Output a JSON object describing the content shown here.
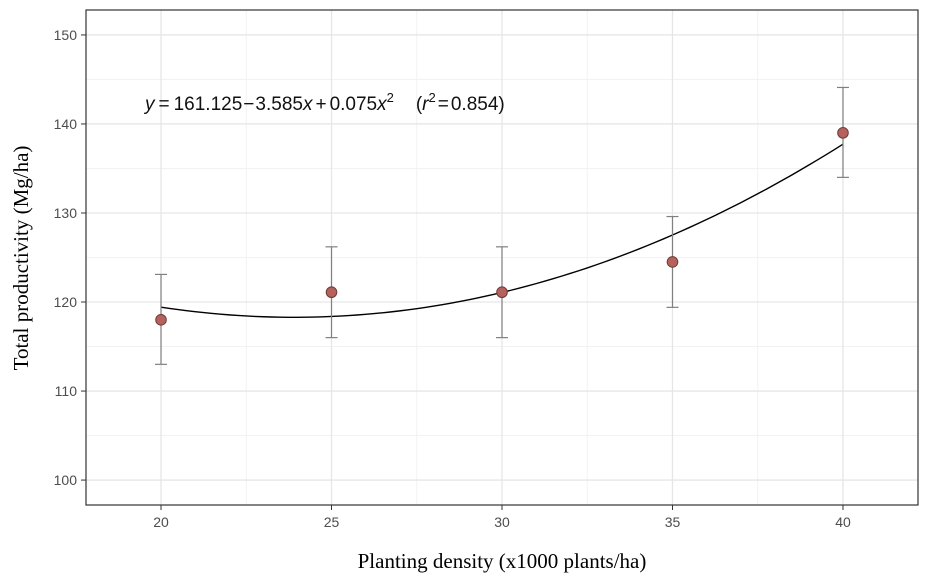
{
  "chart_data": {
    "type": "scatter",
    "title": "",
    "xlabel": "Planting density (x1000 plants/ha)",
    "ylabel": "Total productivity (Mg/ha)",
    "xlim": [
      17.8,
      42.2
    ],
    "ylim": [
      97.2,
      152.8
    ],
    "x_ticks": [
      20,
      25,
      30,
      35,
      40
    ],
    "y_ticks": [
      100,
      110,
      120,
      130,
      140,
      150
    ],
    "grid": true,
    "points": [
      {
        "x": 20,
        "y": 118.0,
        "err_low": 113.0,
        "err_high": 123.1
      },
      {
        "x": 25,
        "y": 121.1,
        "err_low": 116.0,
        "err_high": 126.2
      },
      {
        "x": 30,
        "y": 121.1,
        "err_low": 116.0,
        "err_high": 126.2
      },
      {
        "x": 35,
        "y": 124.5,
        "err_low": 119.4,
        "err_high": 129.6
      },
      {
        "x": 40,
        "y": 139.0,
        "err_low": 134.0,
        "err_high": 144.1
      }
    ],
    "fit": {
      "type": "quadratic",
      "a": 161.125,
      "b": -3.585,
      "c": 0.075,
      "r2": 0.854,
      "x_range": [
        20,
        40
      ]
    },
    "equation": {
      "y_var": "y",
      "x_var": "x",
      "r_var": "r",
      "equals": "=",
      "intercept": "161.125",
      "linear_term": "3.585",
      "quad_term": "0.075",
      "minus": "−",
      "plus": "+",
      "exponent": "2",
      "r2_value": "0.854",
      "open_paren": "(",
      "close_paren": ")"
    },
    "colors": {
      "point_fill": "#b5615c",
      "point_stroke": "#6e3a37",
      "error_bar": "#808080",
      "fit_line": "#000000",
      "grid_major": "#e6e6e6",
      "grid_minor": "#f2f2f2",
      "panel_border": "#333333"
    }
  }
}
